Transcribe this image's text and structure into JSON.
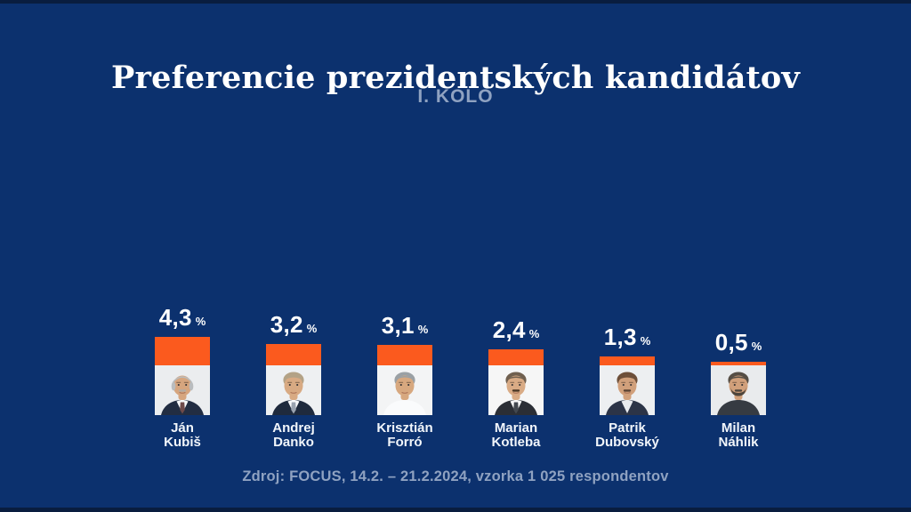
{
  "colors": {
    "background": "#0c316e",
    "edge_strip": "#091d3f",
    "accent_orange": "#fb5a1e",
    "title": "#ffffff",
    "subtitle": "#8fa2c1",
    "value": "#ffffff",
    "name": "#f2f6fb",
    "source": "#8fa2c1"
  },
  "header": {
    "title": "Preferencie prezidentských kandidátov",
    "subtitle": "I. KOLO"
  },
  "candidates": [
    {
      "first_name": "Ján",
      "last_name": "Kubiš",
      "value": 4.3,
      "value_label": "4,3",
      "unit": "%",
      "avatar": {
        "bg": "#ebedef",
        "skin": "#d6a57e",
        "hairStyle": "bald-sides",
        "hair": "#b9bcbe",
        "mustache": "#b3aca3",
        "beard": null,
        "jacket": "#222d42",
        "shirt": "#f7f8fa",
        "tie": "#6e4a4a"
      }
    },
    {
      "first_name": "Andrej",
      "last_name": "Danko",
      "value": 3.2,
      "value_label": "3,2",
      "unit": "%",
      "avatar": {
        "bg": "#eef0f2",
        "skin": "#d8aa83",
        "hairStyle": "cap",
        "hair": "#b3a286",
        "mustache": null,
        "beard": null,
        "jacket": "#1f2a3d",
        "shirt": "#f8f9fb",
        "tie": "#9aa3b0"
      }
    },
    {
      "first_name": "Krisztián",
      "last_name": "Forró",
      "value": 3.1,
      "value_label": "3,1",
      "unit": "%",
      "avatar": {
        "bg": "#f3f4f5",
        "skin": "#d7a87f",
        "hairStyle": "short-cap",
        "hair": "#9aa0a4",
        "mustache": null,
        "beard": null,
        "jacket": "#fafbfc",
        "shirt": null,
        "tie": null
      }
    },
    {
      "first_name": "Marian",
      "last_name": "Kotleba",
      "value": 2.4,
      "value_label": "2,4",
      "unit": "%",
      "avatar": {
        "bg": "#f6f6f6",
        "skin": "#d9ab85",
        "hairStyle": "buzz",
        "hair": "#70604f",
        "mustache": "#4a3624",
        "beard": null,
        "jacket": "#2b2e35",
        "shirt": "#f8f8f8",
        "tie": "#43484f"
      }
    },
    {
      "first_name": "Patrik",
      "last_name": "Dubovský",
      "value": 1.3,
      "value_label": "1,3",
      "unit": "%",
      "avatar": {
        "bg": "#edeff1",
        "skin": "#d1a07b",
        "hairStyle": "cap",
        "hair": "#6d4f39",
        "mustache": "#5a4233",
        "beard": null,
        "jacket": "#2c3447",
        "shirt": "#e9ebee",
        "tie": null
      }
    },
    {
      "first_name": "Milan",
      "last_name": "Náhlik",
      "value": 0.5,
      "value_label": "0,5",
      "unit": "%",
      "avatar": {
        "bg": "#e9ebed",
        "skin": "#d1a07b",
        "hairStyle": "buzz",
        "hair": "#564e45",
        "mustache": "#4d453c",
        "beard": "#4d453c",
        "jacket": "#363b42",
        "shirt": null,
        "tie": null
      }
    }
  ],
  "footer": {
    "source": "Zdroj: FOCUS, 14.2. – 21.2.2024, vzorka 1 025 respondentov"
  },
  "chart_data": {
    "type": "bar",
    "title": "Preferencie prezidentských kandidátov",
    "subtitle": "I. KOLO",
    "categories": [
      "Ján Kubiš",
      "Andrej Danko",
      "Krisztián Forró",
      "Marian Kotleba",
      "Patrik Dubovský",
      "Milan Náhlik"
    ],
    "values": [
      4.3,
      3.2,
      3.1,
      2.4,
      1.3,
      0.5
    ],
    "value_labels": [
      "4,3 %",
      "3,2 %",
      "3,1 %",
      "2,4 %",
      "1,3 %",
      "0,5 %"
    ],
    "unit": "%",
    "ylim": [
      0,
      5
    ],
    "grid": false,
    "legend": false,
    "bar_color": "#fb5a1e",
    "orientation": "vertical",
    "source": "Zdroj: FOCUS, 14.2. – 21.2.2024, vzorka 1 025 respondentov"
  }
}
